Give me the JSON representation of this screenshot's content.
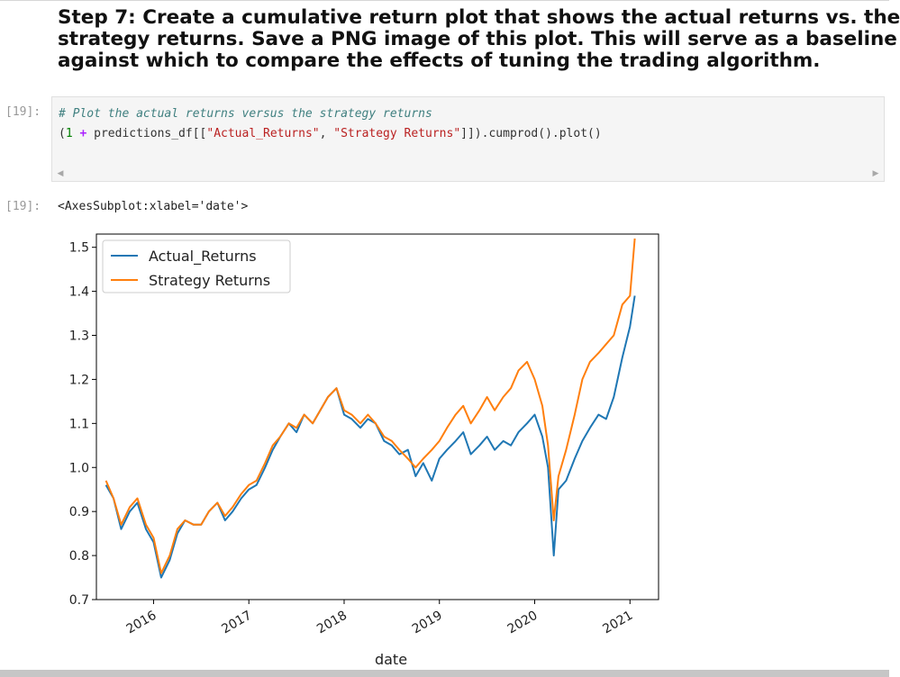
{
  "heading": {
    "lines": [
      "Step 7: Create a cumulative return plot that shows the actual returns vs. the",
      "strategy returns. Save a PNG image of this plot. This will serve as a baseline",
      "against which to compare the effects of tuning the trading algorithm."
    ]
  },
  "input_cell": {
    "prompt": "[19]:",
    "comment": "# Plot the actual returns versus the strategy returns",
    "code": {
      "p1": "(",
      "one": "1",
      "plus": " + ",
      "p2": "predictions_df[[",
      "s1": "\"Actual_Returns\"",
      "p3": ", ",
      "s2": "\"Strategy Returns\"",
      "p4": "]]).cumprod().plot()"
    }
  },
  "output_cell": {
    "prompt": "[19]:",
    "text": "<AxesSubplot:xlabel='date'>"
  },
  "chart_data": {
    "type": "line",
    "xlabel": "date",
    "ylabel": "",
    "xlim": [
      2015.4,
      2021.3
    ],
    "ylim": [
      0.7,
      1.53
    ],
    "x_ticks": [
      "2016",
      "2017",
      "2018",
      "2019",
      "2020",
      "2021"
    ],
    "y_ticks": [
      "0.7",
      "0.8",
      "0.9",
      "1.0",
      "1.1",
      "1.2",
      "1.3",
      "1.4",
      "1.5"
    ],
    "legend_position": "top-left",
    "series": [
      {
        "name": "Actual_Returns",
        "color": "#1f77b4",
        "x": [
          2015.5,
          2015.58,
          2015.66,
          2015.75,
          2015.83,
          2015.92,
          2016.0,
          2016.08,
          2016.17,
          2016.25,
          2016.33,
          2016.42,
          2016.5,
          2016.58,
          2016.67,
          2016.75,
          2016.83,
          2016.92,
          2017.0,
          2017.08,
          2017.17,
          2017.25,
          2017.33,
          2017.42,
          2017.5,
          2017.58,
          2017.67,
          2017.75,
          2017.83,
          2017.92,
          2018.0,
          2018.08,
          2018.17,
          2018.25,
          2018.33,
          2018.42,
          2018.5,
          2018.58,
          2018.67,
          2018.75,
          2018.83,
          2018.92,
          2019.0,
          2019.08,
          2019.17,
          2019.25,
          2019.33,
          2019.42,
          2019.5,
          2019.58,
          2019.67,
          2019.75,
          2019.83,
          2019.92,
          2020.0,
          2020.08,
          2020.14,
          2020.2,
          2020.25,
          2020.33,
          2020.42,
          2020.5,
          2020.58,
          2020.67,
          2020.75,
          2020.83,
          2020.92,
          2021.0,
          2021.05
        ],
        "y": [
          0.96,
          0.93,
          0.86,
          0.9,
          0.92,
          0.86,
          0.83,
          0.75,
          0.79,
          0.85,
          0.88,
          0.87,
          0.87,
          0.9,
          0.92,
          0.88,
          0.9,
          0.93,
          0.95,
          0.96,
          1.0,
          1.04,
          1.07,
          1.1,
          1.08,
          1.12,
          1.1,
          1.13,
          1.16,
          1.18,
          1.12,
          1.11,
          1.09,
          1.11,
          1.1,
          1.06,
          1.05,
          1.03,
          1.04,
          0.98,
          1.01,
          0.97,
          1.02,
          1.04,
          1.06,
          1.08,
          1.03,
          1.05,
          1.07,
          1.04,
          1.06,
          1.05,
          1.08,
          1.1,
          1.12,
          1.07,
          1.0,
          0.8,
          0.95,
          0.97,
          1.02,
          1.06,
          1.09,
          1.12,
          1.11,
          1.16,
          1.25,
          1.32,
          1.39
        ]
      },
      {
        "name": "Strategy Returns",
        "color": "#ff7f0e",
        "x": [
          2015.5,
          2015.58,
          2015.66,
          2015.75,
          2015.83,
          2015.92,
          2016.0,
          2016.08,
          2016.17,
          2016.25,
          2016.33,
          2016.42,
          2016.5,
          2016.58,
          2016.67,
          2016.75,
          2016.83,
          2016.92,
          2017.0,
          2017.08,
          2017.17,
          2017.25,
          2017.33,
          2017.42,
          2017.5,
          2017.58,
          2017.67,
          2017.75,
          2017.83,
          2017.92,
          2018.0,
          2018.08,
          2018.17,
          2018.25,
          2018.33,
          2018.42,
          2018.5,
          2018.58,
          2018.67,
          2018.75,
          2018.83,
          2018.92,
          2019.0,
          2019.08,
          2019.17,
          2019.25,
          2019.33,
          2019.42,
          2019.5,
          2019.58,
          2019.67,
          2019.75,
          2019.83,
          2019.92,
          2020.0,
          2020.08,
          2020.14,
          2020.2,
          2020.25,
          2020.33,
          2020.42,
          2020.5,
          2020.58,
          2020.67,
          2020.75,
          2020.83,
          2020.92,
          2021.0,
          2021.05
        ],
        "y": [
          0.97,
          0.93,
          0.87,
          0.91,
          0.93,
          0.87,
          0.84,
          0.76,
          0.8,
          0.86,
          0.88,
          0.87,
          0.87,
          0.9,
          0.92,
          0.89,
          0.91,
          0.94,
          0.96,
          0.97,
          1.01,
          1.05,
          1.07,
          1.1,
          1.09,
          1.12,
          1.1,
          1.13,
          1.16,
          1.18,
          1.13,
          1.12,
          1.1,
          1.12,
          1.1,
          1.07,
          1.06,
          1.04,
          1.02,
          1.0,
          1.02,
          1.04,
          1.06,
          1.09,
          1.12,
          1.14,
          1.1,
          1.13,
          1.16,
          1.13,
          1.16,
          1.18,
          1.22,
          1.24,
          1.2,
          1.14,
          1.05,
          0.88,
          0.98,
          1.04,
          1.12,
          1.2,
          1.24,
          1.26,
          1.28,
          1.3,
          1.37,
          1.39,
          1.52
        ]
      }
    ]
  }
}
